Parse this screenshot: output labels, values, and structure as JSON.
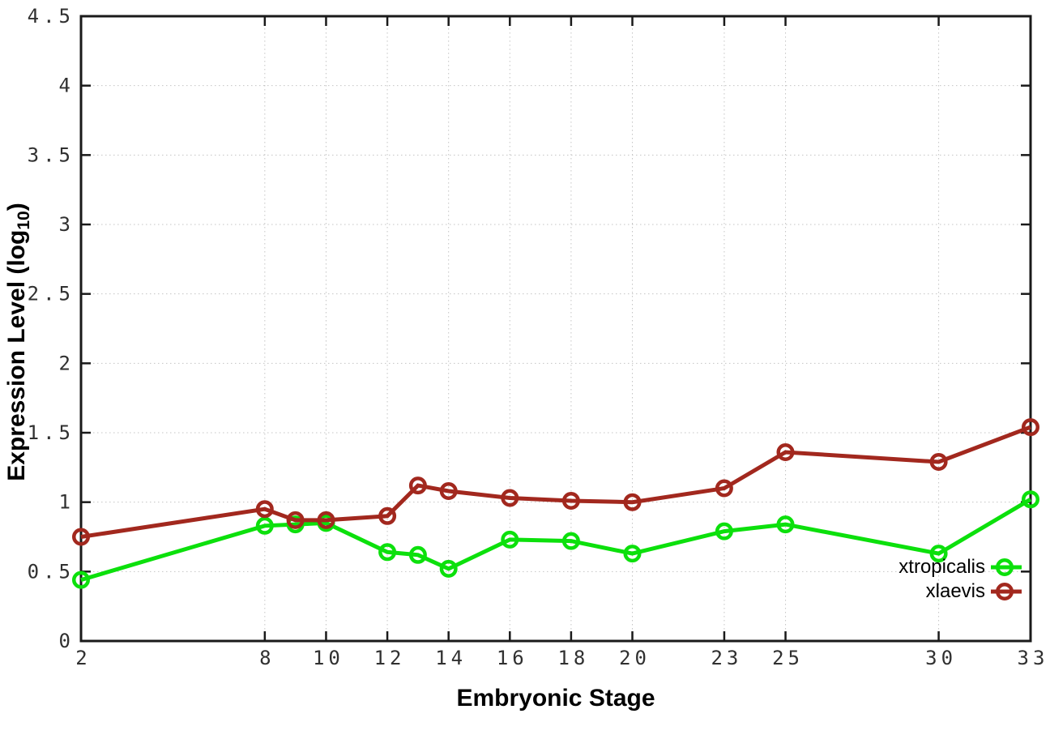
{
  "chart_data": {
    "type": "line",
    "title": "",
    "xlabel": "Embryonic Stage",
    "ylabel": "Expression Level (log10)",
    "ylabel_parts": {
      "pre": "Expression Level (log",
      "sub": "10",
      "post": ")"
    },
    "xlim": [
      2,
      33
    ],
    "ylim": [
      0,
      4.5
    ],
    "grid": true,
    "legend_position": "inside bottom-right",
    "x_ticks": [
      2,
      8,
      10,
      12,
      14,
      16,
      18,
      20,
      23,
      25,
      30,
      33
    ],
    "x_tick_labels": [
      "2",
      "8",
      "10",
      "12",
      "14",
      "16",
      "18",
      "20",
      "23",
      "25",
      "30",
      "33"
    ],
    "y_ticks": [
      0,
      0.5,
      1,
      1.5,
      2,
      2.5,
      3,
      3.5,
      4,
      4.5
    ],
    "y_tick_labels": [
      "0",
      "0.5",
      "1",
      "1.5",
      "2",
      "2.5",
      "3",
      "3.5",
      "4",
      "4.5"
    ],
    "x": [
      2,
      8,
      9,
      10,
      12,
      13,
      14,
      16,
      18,
      20,
      23,
      25,
      30,
      33
    ],
    "series": [
      {
        "name": "xtropicalis",
        "color": "#0CE00C",
        "values": [
          0.44,
          0.83,
          0.84,
          0.85,
          0.64,
          0.62,
          0.52,
          0.73,
          0.72,
          0.63,
          0.79,
          0.84,
          0.63,
          1.02
        ]
      },
      {
        "name": "xlaevis",
        "color": "#A2281E",
        "values": [
          0.75,
          0.95,
          0.87,
          0.87,
          0.9,
          1.12,
          1.08,
          1.03,
          1.01,
          1.0,
          1.1,
          1.36,
          1.29,
          1.54
        ]
      }
    ],
    "style": {
      "grid_color": "#c4c4c4",
      "axis_color": "#1a1a1a",
      "tick_text_color": "#303030",
      "background": "#ffffff"
    }
  }
}
